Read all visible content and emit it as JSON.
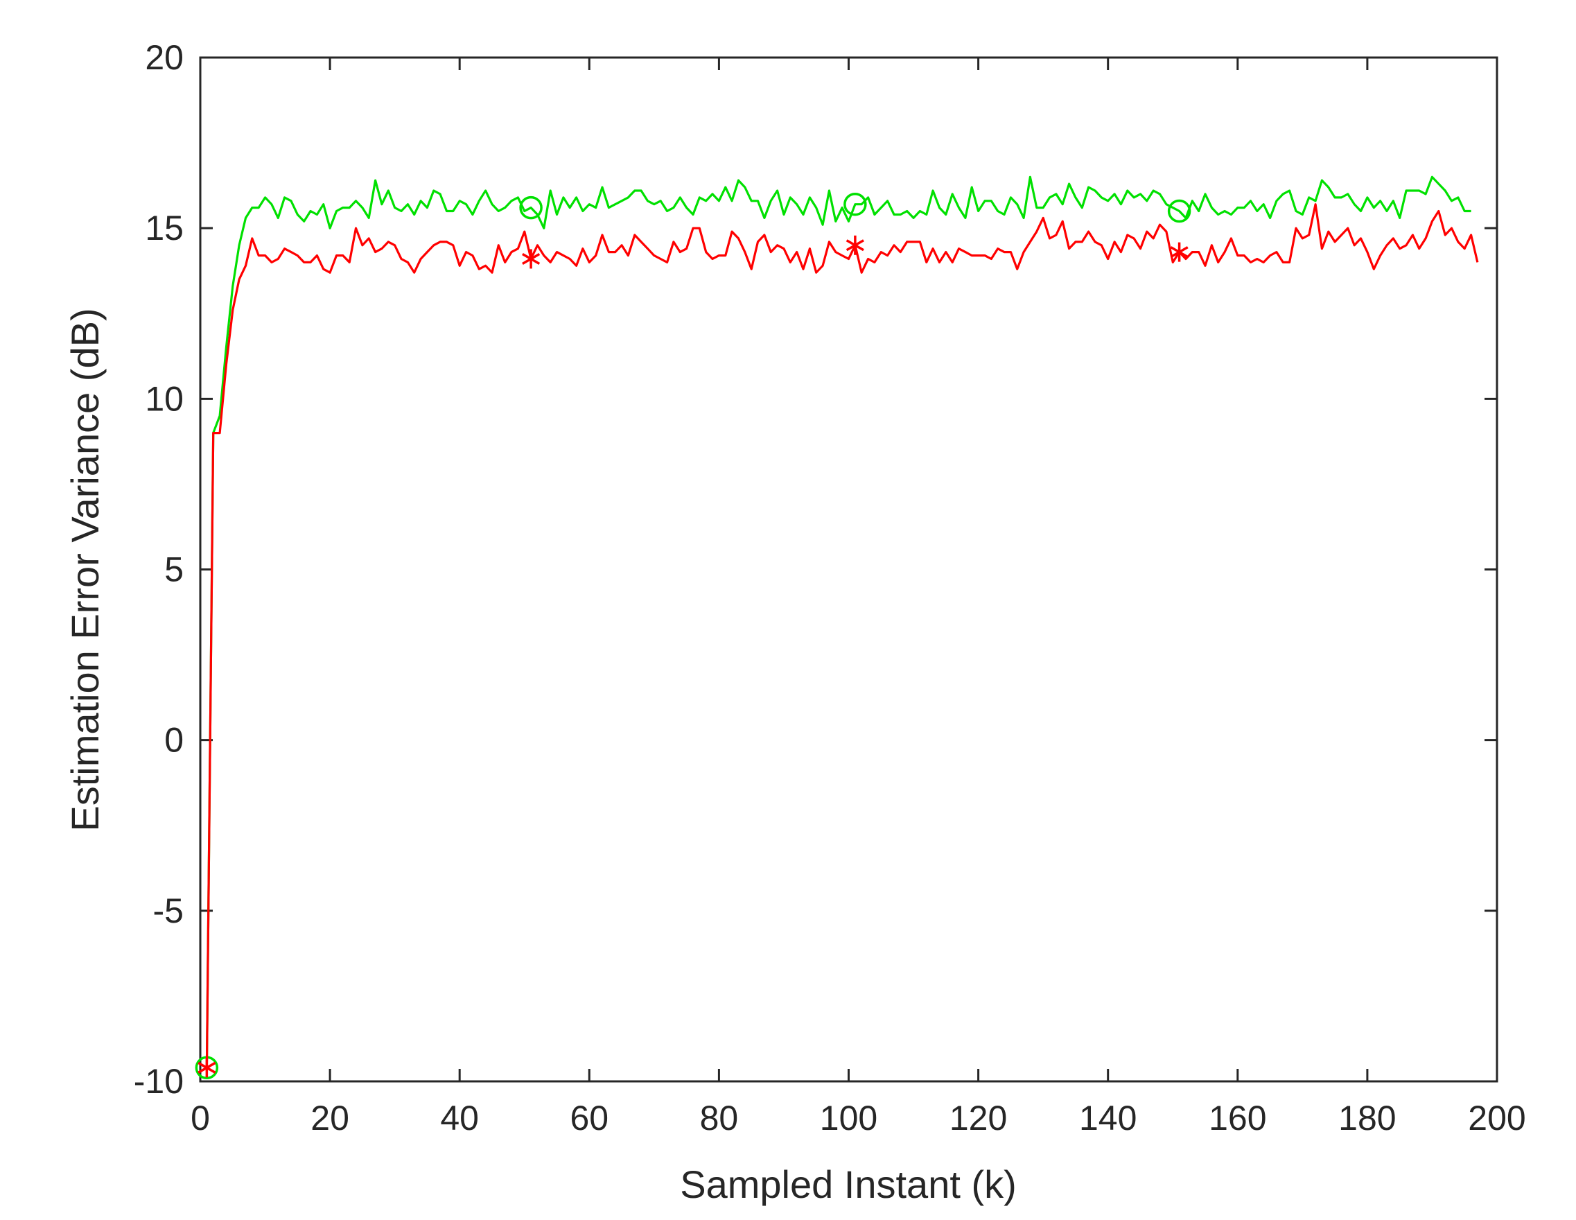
{
  "chart_data": {
    "type": "line",
    "title": "",
    "xlabel": "Sampled Instant (k)",
    "ylabel": "Estimation Error Variance (dB)",
    "xlim": [
      0,
      200
    ],
    "ylim": [
      -10,
      20
    ],
    "xticks": [
      0,
      20,
      40,
      60,
      80,
      100,
      120,
      140,
      160,
      180,
      200
    ],
    "yticks": [
      -10,
      -5,
      0,
      5,
      10,
      15,
      20
    ],
    "xtick_labels": [
      "0",
      "20",
      "40",
      "60",
      "80",
      "100",
      "120",
      "140",
      "160",
      "180",
      "200"
    ],
    "ytick_labels": [
      "-10",
      "-5",
      "0",
      "5",
      "10",
      "15",
      "20"
    ],
    "grid": false,
    "legend": "none",
    "series": [
      {
        "color": "#00e000",
        "marker": "circle",
        "marker_indices": [
          0,
          50,
          100,
          150
        ],
        "y": [
          -9.6,
          9.0,
          9.5,
          11.5,
          13.3,
          14.5,
          15.3,
          15.6,
          15.6,
          15.9,
          15.7,
          15.3,
          15.9,
          15.8,
          15.4,
          15.2,
          15.5,
          15.4,
          15.7,
          15.0,
          15.5,
          15.6,
          15.6,
          15.8,
          15.6,
          15.3,
          16.4,
          15.7,
          16.1,
          15.6,
          15.5,
          15.7,
          15.4,
          15.8,
          15.6,
          16.1,
          16.0,
          15.5,
          15.5,
          15.8,
          15.7,
          15.4,
          15.8,
          16.1,
          15.7,
          15.5,
          15.6,
          15.8,
          15.9,
          15.5,
          15.6,
          15.4,
          15.0,
          16.1,
          15.4,
          15.9,
          15.6,
          15.9,
          15.5,
          15.7,
          15.6,
          16.2,
          15.6,
          15.7,
          15.8,
          15.9,
          16.1,
          16.1,
          15.8,
          15.7,
          15.8,
          15.5,
          15.6,
          15.9,
          15.6,
          15.4,
          15.9,
          15.8,
          16.0,
          15.8,
          16.2,
          15.8,
          16.4,
          16.2,
          15.8,
          15.8,
          15.3,
          15.8,
          16.1,
          15.4,
          15.9,
          15.7,
          15.4,
          15.9,
          15.6,
          15.1,
          16.1,
          15.2,
          15.6,
          15.2,
          15.7,
          15.7,
          15.9,
          15.4,
          15.6,
          15.8,
          15.4,
          15.4,
          15.5,
          15.3,
          15.5,
          15.4,
          16.1,
          15.6,
          15.4,
          16.0,
          15.6,
          15.3,
          16.2,
          15.5,
          15.8,
          15.8,
          15.5,
          15.4,
          15.9,
          15.7,
          15.3,
          16.5,
          15.6,
          15.6,
          15.9,
          16.0,
          15.7,
          16.3,
          15.9,
          15.6,
          16.2,
          16.1,
          15.9,
          15.8,
          16.0,
          15.7,
          16.1,
          15.9,
          16.0,
          15.8,
          16.1,
          16.0,
          15.7,
          15.6,
          15.5,
          15.3,
          15.8,
          15.5,
          16.0,
          15.6,
          15.4,
          15.5,
          15.4,
          15.6,
          15.6,
          15.8,
          15.5,
          15.7,
          15.3,
          15.8,
          16.0,
          16.1,
          15.5,
          15.4,
          15.9,
          15.8,
          16.4,
          16.2,
          15.9,
          15.9,
          16.0,
          15.7,
          15.5,
          15.9,
          15.6,
          15.8,
          15.5,
          15.8,
          15.3,
          16.1,
          16.1,
          16.1,
          16.0,
          16.5,
          16.3,
          16.1,
          15.8,
          15.9,
          15.5,
          15.5
        ]
      },
      {
        "color": "#ff0000",
        "marker": "asterisk",
        "marker_indices": [
          0,
          50,
          100,
          150
        ],
        "y": [
          -9.6,
          9.0,
          9.0,
          11.0,
          12.6,
          13.5,
          13.9,
          14.7,
          14.2,
          14.2,
          14.0,
          14.1,
          14.4,
          14.3,
          14.2,
          14.0,
          14.0,
          14.2,
          13.8,
          13.7,
          14.2,
          14.2,
          14.0,
          15.0,
          14.5,
          14.7,
          14.3,
          14.4,
          14.6,
          14.5,
          14.1,
          14.0,
          13.7,
          14.1,
          14.3,
          14.5,
          14.6,
          14.6,
          14.5,
          13.9,
          14.3,
          14.2,
          13.8,
          13.9,
          13.7,
          14.5,
          14.0,
          14.3,
          14.4,
          14.9,
          14.1,
          14.5,
          14.2,
          14.0,
          14.3,
          14.2,
          14.1,
          13.9,
          14.4,
          14.0,
          14.2,
          14.8,
          14.3,
          14.3,
          14.5,
          14.2,
          14.8,
          14.6,
          14.4,
          14.2,
          14.1,
          14.0,
          14.6,
          14.3,
          14.4,
          15.0,
          15.0,
          14.3,
          14.1,
          14.2,
          14.2,
          14.9,
          14.7,
          14.3,
          13.8,
          14.6,
          14.8,
          14.3,
          14.5,
          14.4,
          14.0,
          14.3,
          13.8,
          14.4,
          13.7,
          13.9,
          14.6,
          14.3,
          14.2,
          14.1,
          14.5,
          13.7,
          14.1,
          14.0,
          14.3,
          14.2,
          14.5,
          14.3,
          14.6,
          14.6,
          14.6,
          14.0,
          14.4,
          14.0,
          14.3,
          14.0,
          14.4,
          14.3,
          14.2,
          14.2,
          14.2,
          14.1,
          14.4,
          14.3,
          14.3,
          13.8,
          14.3,
          14.6,
          14.9,
          15.3,
          14.7,
          14.8,
          15.2,
          14.4,
          14.6,
          14.6,
          14.9,
          14.6,
          14.5,
          14.1,
          14.6,
          14.3,
          14.8,
          14.7,
          14.4,
          14.9,
          14.7,
          15.1,
          14.9,
          14.0,
          14.3,
          14.1,
          14.3,
          14.3,
          13.9,
          14.5,
          14.0,
          14.3,
          14.7,
          14.2,
          14.2,
          14.0,
          14.1,
          14.0,
          14.2,
          14.3,
          14.0,
          14.0,
          15.0,
          14.7,
          14.8,
          15.7,
          14.4,
          14.9,
          14.6,
          14.8,
          15.0,
          14.5,
          14.7,
          14.3,
          13.8,
          14.2,
          14.5,
          14.7,
          14.4,
          14.5,
          14.8,
          14.4,
          14.7,
          15.2,
          15.5,
          14.8,
          15.0,
          14.6,
          14.4,
          14.8,
          14.0
        ]
      }
    ]
  }
}
